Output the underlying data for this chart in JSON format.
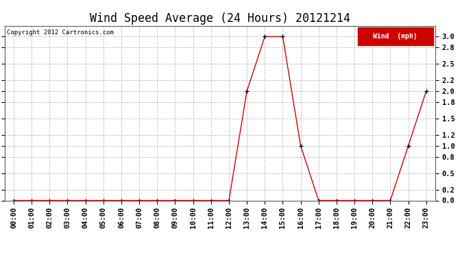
{
  "title": "Wind Speed Average (24 Hours) 20121214",
  "copyright_text": "Copyright 2012 Cartronics.com",
  "legend_label": "Wind  (mph)",
  "legend_bg": "#cc0000",
  "legend_text_color": "#ffffff",
  "x_labels": [
    "00:00",
    "01:00",
    "02:00",
    "03:00",
    "04:00",
    "05:00",
    "06:00",
    "07:00",
    "08:00",
    "09:00",
    "10:00",
    "11:00",
    "12:00",
    "13:00",
    "14:00",
    "15:00",
    "16:00",
    "17:00",
    "18:00",
    "19:00",
    "20:00",
    "21:00",
    "22:00",
    "23:00"
  ],
  "x_values": [
    0,
    1,
    2,
    3,
    4,
    5,
    6,
    7,
    8,
    9,
    10,
    11,
    12,
    13,
    14,
    15,
    16,
    17,
    18,
    19,
    20,
    21,
    22,
    23
  ],
  "y_values": [
    0.0,
    0.0,
    0.0,
    0.0,
    0.0,
    0.0,
    0.0,
    0.0,
    0.0,
    0.0,
    0.0,
    0.0,
    0.0,
    2.0,
    3.0,
    3.0,
    1.0,
    0.0,
    0.0,
    0.0,
    0.0,
    0.0,
    1.0,
    2.0
  ],
  "ylim": [
    0.0,
    3.2
  ],
  "yticks": [
    0.0,
    0.2,
    0.5,
    0.8,
    1.0,
    1.2,
    1.5,
    1.8,
    2.0,
    2.2,
    2.5,
    2.8,
    3.0
  ],
  "line_color": "#cc0000",
  "marker_color": "#000000",
  "bg_color": "#ffffff",
  "grid_color": "#bbbbbb",
  "title_fontsize": 12,
  "tick_fontsize": 7.5,
  "copyright_fontsize": 6.5
}
